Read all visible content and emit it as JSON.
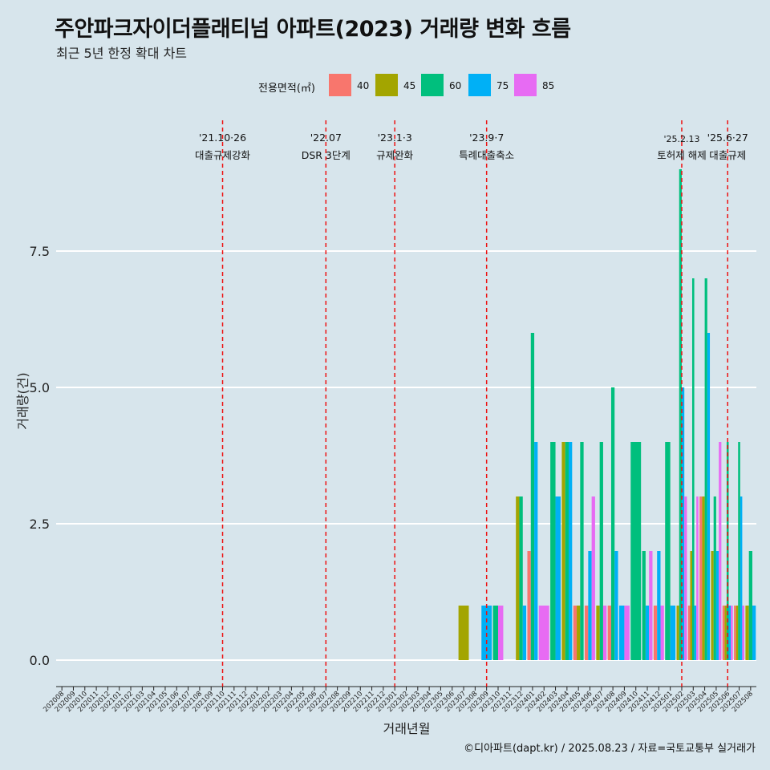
{
  "title": "주안파크자이더플래티넘 아파트(2023) 거래량 변화 흐름",
  "subtitle": "최근 5년 한정 확대 차트",
  "legend": {
    "title": "전용면적(㎡)",
    "items": [
      {
        "label": "40",
        "color": "#f8766d"
      },
      {
        "label": "45",
        "color": "#a3a500"
      },
      {
        "label": "60",
        "color": "#00bf7d"
      },
      {
        "label": "75",
        "color": "#00b0f6"
      },
      {
        "label": "85",
        "color": "#e76bf3"
      }
    ]
  },
  "caption": "©디아파트(dapt.kr) / 2025.08.23 / 자료=국토교통부 실거래가",
  "chart_data": {
    "type": "bar",
    "title": "주안파크자이더플래티넘 아파트(2023) 거래량 변화 흐름",
    "subtitle": "최근 5년 한정 확대 차트",
    "xlabel": "거래년월",
    "ylabel": "거래량(건)",
    "ylim": [
      -0.5,
      9.2
    ],
    "yticks": [
      0,
      2.5,
      5,
      7.5
    ],
    "ytick_labels": [
      "0.0",
      "2.5",
      "5.0",
      "7.5"
    ],
    "grid": true,
    "legend_position": "top",
    "categories": [
      "202008",
      "202009",
      "202010",
      "202011",
      "202012",
      "202101",
      "202102",
      "202103",
      "202104",
      "202105",
      "202106",
      "202107",
      "202108",
      "202109",
      "202110",
      "202111",
      "202112",
      "202201",
      "202202",
      "202203",
      "202204",
      "202205",
      "202206",
      "202207",
      "202208",
      "202209",
      "202210",
      "202211",
      "202212",
      "202301",
      "202302",
      "202303",
      "202304",
      "202305",
      "202306",
      "202307",
      "202308",
      "202309",
      "202310",
      "202311",
      "202312",
      "202401",
      "202402",
      "202403",
      "202404",
      "202405",
      "202406",
      "202407",
      "202408",
      "202409",
      "202410",
      "202411",
      "202412",
      "202501",
      "202502",
      "202503",
      "202504",
      "202505",
      "202506",
      "202507",
      "202508"
    ],
    "series": [
      {
        "name": "40",
        "color": "#f8766d",
        "values": {
          "202401": 2,
          "202405": 1,
          "202406": 1,
          "202408": 1,
          "202412": 1,
          "202503": 1,
          "202504": 3,
          "202506": 1,
          "202507": 1
        }
      },
      {
        "name": "45",
        "color": "#a3a500",
        "values": {
          "202307": 1,
          "202312": 3,
          "202404": 4,
          "202405": 1,
          "202407": 1,
          "202502": 1,
          "202503": 2,
          "202504": 3,
          "202505": 2,
          "202506": 1,
          "202507": 1,
          "202508": 1
        }
      },
      {
        "name": "60",
        "color": "#00bf7d",
        "values": {
          "202310": 1,
          "202312": 3,
          "202401": 6,
          "202403": 4,
          "202404": 4,
          "202405": 4,
          "202407": 4,
          "202408": 5,
          "202410": 4,
          "202411": 2,
          "202501": 4,
          "202502": 9,
          "202503": 7,
          "202504": 7,
          "202505": 3,
          "202506": 4,
          "202507": 4,
          "202508": 2
        }
      },
      {
        "name": "75",
        "color": "#00b0f6",
        "values": {
          "202309": 1,
          "202312": 1,
          "202401": 4,
          "202403": 3,
          "202404": 4,
          "202406": 2,
          "202408": 2,
          "202409": 1,
          "202411": 1,
          "202412": 2,
          "202501": 1,
          "202502": 5,
          "202503": 1,
          "202504": 6,
          "202505": 2,
          "202506": 1,
          "202507": 3,
          "202508": 1
        }
      },
      {
        "name": "85",
        "color": "#e76bf3",
        "values": {
          "202310": 1,
          "202402": 1,
          "202406": 3,
          "202407": 1,
          "202409": 1,
          "202411": 2,
          "202412": 1,
          "202502": 3,
          "202503": 3,
          "202505": 4,
          "202506": 1,
          "202507": 1
        }
      }
    ],
    "annotations": [
      {
        "x": "202110",
        "line1": "'21.10·26",
        "line2": "대출규제강화",
        "color": "#ee1111"
      },
      {
        "x": "202207",
        "line1": "'22.07",
        "line2": "DSR 3단계",
        "color": "#ee1111"
      },
      {
        "x": "202301",
        "line1": "'23.1·3",
        "line2": "규제완화",
        "color": "#ee1111"
      },
      {
        "x": "202309",
        "line1": "'23.9·7",
        "line2": "특례대출축소",
        "color": "#ee1111"
      },
      {
        "x": "202502",
        "line1": "'25.2.13",
        "line2": "토허제 해제",
        "color": "#ee1111"
      },
      {
        "x": "202506",
        "line1": "'25.6·27",
        "line2": "대출규제",
        "color": "#ee1111"
      }
    ]
  }
}
